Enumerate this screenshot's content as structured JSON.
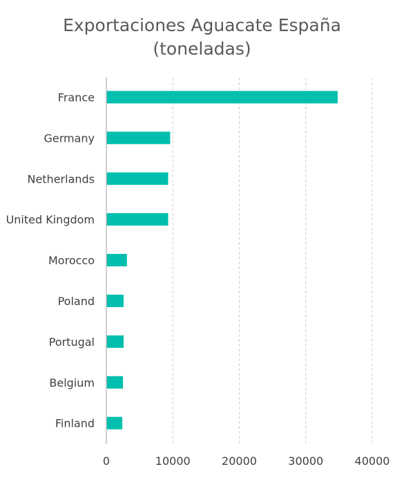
{
  "chart_data": {
    "type": "bar",
    "orientation": "horizontal",
    "title_lines": [
      "Exportaciones Aguacate España",
      "(toneladas)"
    ],
    "categories": [
      "France",
      "Germany",
      "Netherlands",
      "United Kingdom",
      "Morocco",
      "Poland",
      "Portugal",
      "Belgium",
      "Finland"
    ],
    "values": [
      34800,
      9600,
      9300,
      9300,
      3100,
      2600,
      2600,
      2500,
      2400
    ],
    "xlim": [
      0,
      40000
    ],
    "xticks": [
      0,
      10000,
      20000,
      30000,
      40000
    ],
    "grid": "vertical-dashed",
    "legend": "none",
    "bar_color": "#00BFAE",
    "grid_color": "#D0D0D0",
    "axis_color": "#BFBFBF"
  }
}
